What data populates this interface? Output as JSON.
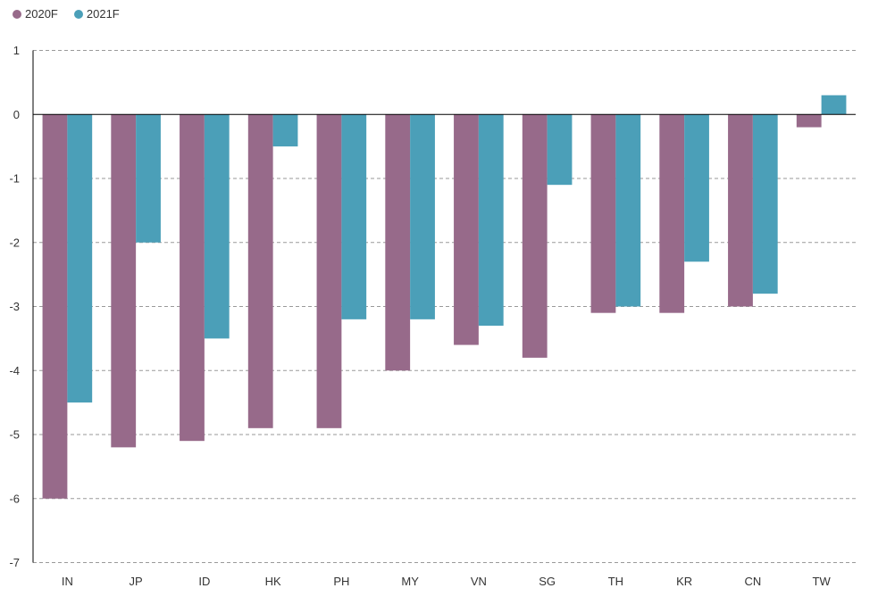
{
  "chart_data": {
    "type": "bar",
    "title": "",
    "xlabel": "",
    "ylabel": "",
    "categories": [
      "IN",
      "JP",
      "ID",
      "HK",
      "PH",
      "MY",
      "VN",
      "SG",
      "TH",
      "KR",
      "CN",
      "TW"
    ],
    "series": [
      {
        "name": "2020F",
        "color": "#976a8a",
        "values": [
          -6.0,
          -5.2,
          -5.1,
          -4.9,
          -4.9,
          -4.0,
          -3.6,
          -3.8,
          -3.1,
          -3.1,
          -3.0,
          -0.2
        ]
      },
      {
        "name": "2021F",
        "color": "#4b9fb8",
        "values": [
          -4.5,
          -2.0,
          -3.5,
          -0.5,
          -3.2,
          -3.2,
          -3.3,
          -1.1,
          -3.0,
          -2.3,
          -2.8,
          0.3
        ]
      }
    ],
    "ylim": [
      -7,
      1
    ],
    "yticks": [
      1,
      0,
      -1,
      -2,
      -3,
      -4,
      -5,
      -6,
      -7
    ],
    "ytick_labels": [
      "1",
      "0",
      "-1",
      "-2",
      "-3",
      "-4",
      "-5",
      "-6",
      "-7"
    ],
    "grid": true,
    "legend_position": "top-left"
  }
}
